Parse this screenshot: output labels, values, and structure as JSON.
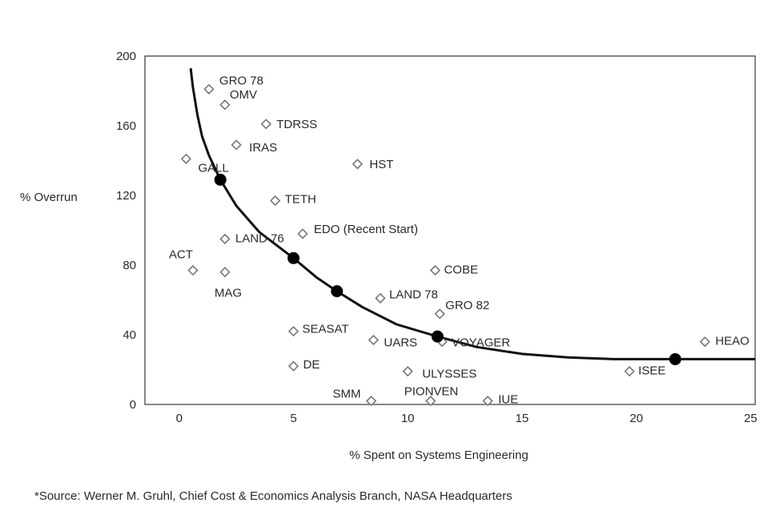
{
  "chart_data": {
    "type": "scatter",
    "title": "",
    "xlabel": "% Spent on Systems Engineering",
    "ylabel": "% Overrun",
    "xlim": [
      -1.5,
      25.2
    ],
    "ylim": [
      0,
      200
    ],
    "xticks": [
      "0",
      "5",
      "10",
      "15",
      "20",
      "25"
    ],
    "xtick_values": [
      0,
      5,
      10,
      15,
      20,
      25
    ],
    "yticks": [
      "0",
      "40",
      "80",
      "120",
      "160",
      "200"
    ],
    "ytick_values": [
      0,
      40,
      80,
      120,
      160,
      200
    ],
    "grid": false,
    "legend": "none",
    "points": [
      {
        "label": "GRO 78",
        "x": 1.3,
        "y": 181
      },
      {
        "label": "OMV",
        "x": 2.0,
        "y": 172
      },
      {
        "label": "TDRSS",
        "x": 3.8,
        "y": 161
      },
      {
        "label": "IRAS",
        "x": 2.5,
        "y": 149
      },
      {
        "label": "GALL",
        "x": 0.3,
        "y": 141
      },
      {
        "label": "HST",
        "x": 7.8,
        "y": 138
      },
      {
        "label": "TETH",
        "x": 4.2,
        "y": 117
      },
      {
        "label": "LAND 76",
        "x": 2.0,
        "y": 95
      },
      {
        "label": "EDO (Recent Start)",
        "x": 5.4,
        "y": 98
      },
      {
        "label": "ACT",
        "x": 0.6,
        "y": 77
      },
      {
        "label": "MAG",
        "x": 2.0,
        "y": 76
      },
      {
        "label": "COBE",
        "x": 11.2,
        "y": 77
      },
      {
        "label": "LAND 78",
        "x": 8.8,
        "y": 61
      },
      {
        "label": "GRO 82",
        "x": 11.4,
        "y": 52
      },
      {
        "label": "SEASAT",
        "x": 5.0,
        "y": 42
      },
      {
        "label": "UARS",
        "x": 8.5,
        "y": 37
      },
      {
        "label": "VOYAGER",
        "x": 11.5,
        "y": 36
      },
      {
        "label": "HEAO",
        "x": 23.0,
        "y": 36
      },
      {
        "label": "DE",
        "x": 5.0,
        "y": 22
      },
      {
        "label": "ULYSSES",
        "x": 10.0,
        "y": 19
      },
      {
        "label": "ISEE",
        "x": 19.7,
        "y": 19
      },
      {
        "label": "SMM",
        "x": 8.4,
        "y": 2
      },
      {
        "label": "PIONVEN",
        "x": 11.0,
        "y": 2
      },
      {
        "label": "IUE",
        "x": 13.5,
        "y": 2
      }
    ],
    "curve_markers": [
      {
        "x": 1.8,
        "y": 129
      },
      {
        "x": 5.0,
        "y": 84
      },
      {
        "x": 6.9,
        "y": 65
      },
      {
        "x": 11.3,
        "y": 39
      },
      {
        "x": 21.7,
        "y": 26
      }
    ],
    "trend_curve": {
      "description": "hand-fit hyperbolic trend line",
      "x": [
        0.5,
        0.6,
        0.8,
        1.0,
        1.3,
        1.8,
        2.5,
        3.5,
        5.0,
        6.0,
        6.9,
        8.0,
        9.5,
        11.3,
        13.0,
        15.0,
        17.0,
        19.0,
        21.7,
        25.2
      ],
      "y": [
        193,
        182,
        166,
        154,
        143,
        129,
        114,
        99,
        84,
        73,
        65,
        56,
        46,
        39,
        33,
        29,
        27,
        26,
        26,
        26
      ]
    }
  },
  "source_note": "*Source: Werner M. Gruhl, Chief Cost & Economics Analysis Branch, NASA Headquarters",
  "colors": {
    "ink": "#1a1a1a",
    "marker": "#777777",
    "text": "#2a2a2a"
  }
}
